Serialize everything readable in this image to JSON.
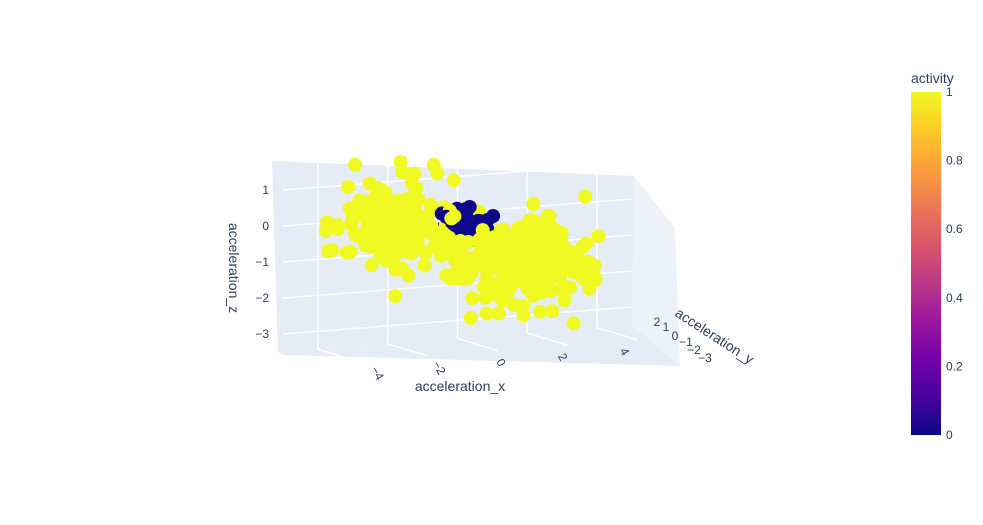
{
  "chart_data": {
    "type": "scatter",
    "title": "",
    "axes": {
      "x": {
        "label": "acceleration_x",
        "range": [
          -5,
          5
        ],
        "ticks": [
          "−4",
          "−2",
          "0",
          "2",
          "4"
        ]
      },
      "y": {
        "label": "acceleration_y",
        "range": [
          -3.5,
          2.5
        ],
        "ticks": [
          "2",
          "1",
          "0",
          "−1",
          "−2",
          "−3"
        ]
      },
      "z": {
        "label": "acceleration_z",
        "range": [
          -3.5,
          1.7
        ],
        "ticks": [
          "1",
          "0",
          "−1",
          "−2",
          "−3"
        ]
      }
    },
    "grid": true,
    "colorbar": {
      "title": "activity",
      "range": [
        0,
        1
      ],
      "ticks": [
        "0",
        "0.2",
        "0.4",
        "0.6",
        "0.8",
        "1"
      ],
      "colors": [
        "#0d0887",
        "#46039f",
        "#7201a8",
        "#9c179e",
        "#bd3786",
        "#d8576b",
        "#ed7953",
        "#fb9f3a",
        "#fdca26",
        "#f0f921"
      ]
    },
    "clusters": [
      {
        "activity": 1,
        "center": [
          -2.2,
          0.2,
          0.0
        ],
        "spread": [
          0.8,
          0.5,
          0.55
        ],
        "count": 220
      },
      {
        "activity": 1,
        "center": [
          1.3,
          -0.5,
          -1.3
        ],
        "spread": [
          0.9,
          0.6,
          0.6
        ],
        "count": 260
      },
      {
        "activity": 0,
        "center": [
          -0.3,
          0.3,
          -0.2
        ],
        "spread": [
          0.35,
          0.3,
          0.25
        ],
        "count": 45
      }
    ],
    "outliers": [
      {
        "activity": 1,
        "x": -1.8,
        "y": 0.3,
        "z": 1.3
      },
      {
        "activity": 1,
        "x": 3.3,
        "y": 0.6,
        "z": 0.3
      },
      {
        "activity": 1,
        "x": 3.6,
        "y": 0.2,
        "z": -0.8
      },
      {
        "activity": 1,
        "x": 2.7,
        "y": -0.8,
        "z": -3.1
      },
      {
        "activity": 1,
        "x": -2.3,
        "y": -0.2,
        "z": -2.0
      },
      {
        "activity": 1,
        "x": -0.6,
        "y": 0.1,
        "z": -1.6
      }
    ]
  }
}
